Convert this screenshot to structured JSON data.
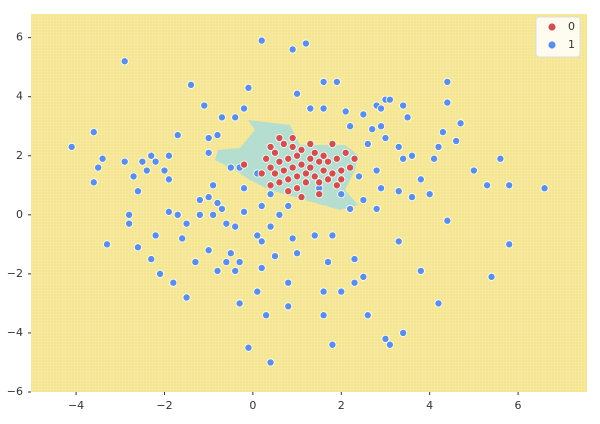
{
  "chart_data": {
    "type": "scatter",
    "xlim": [
      -5.02,
      7.56
    ],
    "ylim": [
      -6,
      6.8
    ],
    "xticks": [
      {
        "value": -4,
        "label": "−4"
      },
      {
        "value": -2,
        "label": "−2"
      },
      0,
      2,
      4,
      6
    ],
    "yticks": [
      {
        "value": -6,
        "label": "−6"
      },
      {
        "value": -4,
        "label": "−4"
      },
      {
        "value": -2,
        "label": "−2"
      },
      0,
      2,
      4,
      6
    ],
    "legend": "upper right",
    "series": [
      {
        "name": "0",
        "color": "#d1504f",
        "x": [
          0.3,
          0.4,
          0.4,
          0.5,
          0.5,
          0.6,
          0.6,
          0.7,
          0.7,
          0.8,
          0.8,
          0.8,
          0.9,
          0.9,
          1.0,
          1.0,
          1.0,
          1.1,
          1.1,
          1.2,
          1.2,
          1.3,
          1.3,
          1.4,
          1.4,
          1.5,
          1.5,
          1.6,
          1.6,
          1.7,
          1.7,
          1.8,
          1.8,
          1.9,
          2.0,
          2.1,
          2.2,
          0.2,
          -0.2,
          0.4,
          1.1,
          1.9,
          1.3,
          2.3,
          0.6,
          0.9,
          1.5,
          2.0
        ],
        "values": [
          1.9,
          1.6,
          2.3,
          1.4,
          2.1,
          1.8,
          1.1,
          2.4,
          1.5,
          1.9,
          1.2,
          0.8,
          2.3,
          1.6,
          2.0,
          1.3,
          0.9,
          1.7,
          2.2,
          1.4,
          1.1,
          1.9,
          1.6,
          2.1,
          1.3,
          1.8,
          1.1,
          2.0,
          1.5,
          1.2,
          1.8,
          2.4,
          1.4,
          1.9,
          1.2,
          2.1,
          1.6,
          1.4,
          1.7,
          1.0,
          0.6,
          1.0,
          2.4,
          1.9,
          2.6,
          2.6,
          0.7,
          1.5
        ]
      },
      {
        "name": "1",
        "color": "#5b8fe6",
        "x": [
          -4.1,
          -3.6,
          -3.4,
          -3.5,
          -3.6,
          -2.9,
          -2.9,
          -2.5,
          -2.3,
          -2.2,
          -1.9,
          -2.0,
          -2.7,
          -2.4,
          -1.9,
          -1.7,
          -1.4,
          -1.1,
          -1.0,
          -0.7,
          -0.8,
          -0.4,
          -0.2,
          -0.1,
          0.2,
          0.9,
          1.2,
          1.0,
          1.6,
          1.9,
          1.3,
          1.6,
          2.1,
          2.5,
          2.8,
          2.9,
          3.0,
          3.1,
          3.4,
          3.5,
          2.9,
          2.7,
          2.2,
          2.6,
          3.0,
          3.3,
          3.6,
          4.1,
          4.2,
          4.3,
          4.4,
          4.6,
          4.7,
          5.0,
          5.6,
          5.8,
          6.6,
          5.3,
          3.8,
          3.3,
          3.6,
          2.9,
          2.8,
          2.5,
          2.2,
          1.4,
          1.8,
          2.3,
          2.3,
          2.5,
          2.6,
          1.8,
          2.0,
          3.0,
          3.1,
          3.4,
          3.8,
          4.2,
          4.4,
          3.3,
          4.0,
          5.8,
          5.4,
          1.7,
          1.6,
          0.8,
          1.0,
          0.5,
          0.2,
          0.1,
          0.3,
          -0.1,
          0.4,
          -0.3,
          -0.4,
          -0.6,
          -0.5,
          -0.8,
          -1.0,
          -1.3,
          -1.5,
          -1.8,
          -2.1,
          -2.3,
          -2.2,
          -1.6,
          -1.5,
          -1.7,
          -1.9,
          -1.2,
          -0.9,
          -0.7,
          -0.4,
          -0.6,
          -0.2,
          0.2,
          0.4,
          0.2,
          0.6,
          0.8,
          0.1,
          -0.8,
          -1.0,
          -1.2,
          -0.9,
          -0.3,
          -0.2,
          0.1,
          -2.6,
          -2.8,
          -2.8,
          -3.3,
          -2.6,
          -1.0,
          -0.5,
          0.4,
          1.5,
          2.0,
          2.4,
          2.8,
          2.3,
          3.4,
          4.4,
          -0.3,
          0.8,
          1.6,
          0.9
        ],
        "values": [
          2.3,
          2.8,
          1.9,
          1.6,
          1.1,
          5.2,
          1.8,
          1.8,
          2.0,
          1.8,
          2.0,
          1.5,
          1.3,
          1.5,
          1.2,
          2.7,
          4.4,
          3.7,
          2.6,
          3.3,
          2.7,
          3.3,
          3.6,
          4.3,
          5.9,
          5.6,
          5.8,
          4.1,
          4.5,
          4.5,
          3.6,
          3.6,
          3.5,
          3.4,
          3.7,
          3.6,
          3.9,
          3.9,
          3.7,
          3.3,
          3.0,
          2.9,
          3.0,
          2.4,
          2.6,
          2.3,
          2.0,
          1.9,
          2.3,
          2.8,
          4.5,
          2.5,
          3.1,
          1.5,
          1.9,
          1.0,
          0.9,
          1.0,
          1.2,
          0.8,
          0.6,
          0.9,
          0.2,
          0.5,
          0.2,
          -0.7,
          -0.7,
          -1.5,
          -2.3,
          -2.1,
          -3.4,
          -4.4,
          -2.6,
          -4.2,
          -4.4,
          -4.0,
          -1.9,
          -3.0,
          -0.2,
          -0.9,
          0.7,
          -1.0,
          -2.1,
          -1.6,
          -2.6,
          -2.3,
          -1.3,
          -1.4,
          -1.8,
          -2.6,
          -3.4,
          -4.5,
          -5.0,
          -1.6,
          -1.9,
          -1.6,
          -1.3,
          -1.9,
          -1.2,
          -1.6,
          -2.8,
          -2.3,
          -2.0,
          -1.5,
          -0.7,
          -0.8,
          -0.3,
          0.0,
          0.1,
          0.0,
          0.0,
          0.2,
          -0.4,
          -0.3,
          0.1,
          0.3,
          -0.4,
          -0.9,
          0.0,
          0.3,
          -0.7,
          0.4,
          0.6,
          0.5,
          1.0,
          1.6,
          0.9,
          1.4,
          0.8,
          -0.3,
          0.0,
          -1.0,
          -1.1,
          2.1,
          1.6,
          0.7,
          0.9,
          0.7,
          1.3,
          1.5,
          1.9,
          1.9,
          3.8,
          -3.0,
          -3.1,
          -3.4,
          -0.8
        ]
      }
    ]
  }
}
